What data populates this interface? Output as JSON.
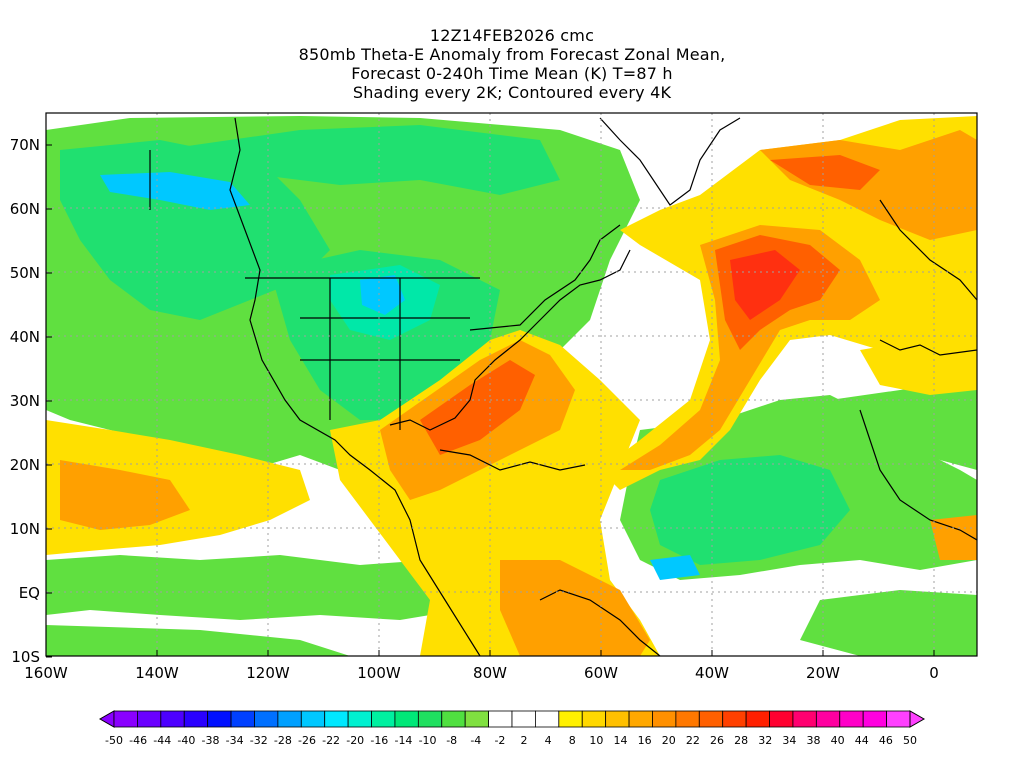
{
  "header": {
    "run": "12Z14FEB2026 cmc",
    "line2": "850mb Theta-E Anomaly from Forecast Zonal Mean,",
    "line3": "Forecast 0-240h Time Mean (K) T=87 h",
    "line4": "Shading every 2K; Contoured every 4K"
  },
  "axes": {
    "lat_labels": [
      "70N",
      "60N",
      "50N",
      "40N",
      "30N",
      "20N",
      "10N",
      "EQ",
      "10S"
    ],
    "lon_labels": [
      "160W",
      "140W",
      "120W",
      "100W",
      "80W",
      "60W",
      "40W",
      "20W",
      "0"
    ]
  },
  "colorbar": {
    "labels": [
      "-50",
      "-46",
      "-44",
      "-40",
      "-38",
      "-34",
      "-32",
      "-28",
      "-26",
      "-22",
      "-20",
      "-16",
      "-14",
      "-10",
      "-8",
      "-4",
      "-2",
      "2",
      "4",
      "8",
      "10",
      "14",
      "16",
      "20",
      "22",
      "26",
      "28",
      "32",
      "34",
      "38",
      "40",
      "44",
      "46",
      "50"
    ],
    "colors": [
      "#8a00ff",
      "#6a00ff",
      "#4d00ff",
      "#2a00ff",
      "#0010ff",
      "#0040ff",
      "#0070ff",
      "#00a0ff",
      "#00c8ff",
      "#00e8ff",
      "#00f0d0",
      "#00f0a0",
      "#00e878",
      "#20e060",
      "#50e040",
      "#80e040",
      "#ffffff",
      "#ffffff",
      "#ffffff",
      "#fff000",
      "#ffd800",
      "#ffc000",
      "#ffa800",
      "#ff9000",
      "#ff7800",
      "#ff6000",
      "#ff4000",
      "#ff2000",
      "#ff0030",
      "#ff0070",
      "#ff00a0",
      "#ff00c8",
      "#ff00e0",
      "#ff40ff"
    ]
  },
  "legend_colors": {
    "neg_strong": "#00c8ff",
    "neg_mid": "#20e070",
    "neg_weak": "#60e040",
    "pos_weak": "#ffe000",
    "pos_mid": "#ffa000",
    "pos_strong": "#ff6000",
    "pos_max": "#ff3010"
  }
}
